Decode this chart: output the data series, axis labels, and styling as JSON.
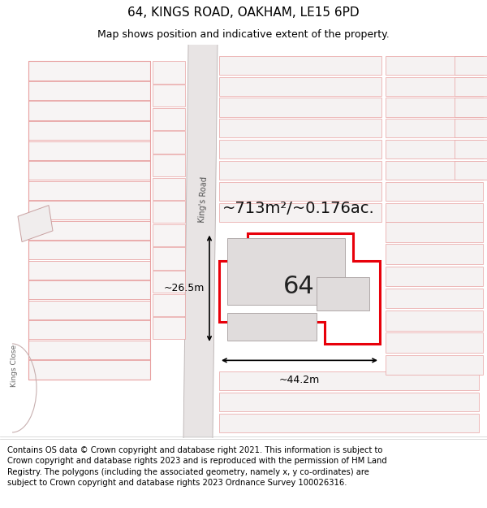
{
  "title_line1": "64, KINGS ROAD, OAKHAM, LE15 6PD",
  "title_line2": "Map shows position and indicative extent of the property.",
  "footer_text": "Contains OS data © Crown copyright and database right 2021. This information is subject to Crown copyright and database rights 2023 and is reproduced with the permission of HM Land Registry. The polygons (including the associated geometry, namely x, y co-ordinates) are subject to Crown copyright and database rights 2023 Ordnance Survey 100026316.",
  "area_label": "~713m²/~0.176ac.",
  "plot_number": "64",
  "measure_width": "~44.2m",
  "measure_height": "~26.5m",
  "bg_color": "#ffffff",
  "map_bg": "#ffffff",
  "parcel_fill": "#f5f0f0",
  "parcel_edge": "#e8a0a0",
  "plot_fill": "#ffffff",
  "plot_edge": "#e8000a",
  "road_color": "#d8d0d0",
  "road_label": "King's Road",
  "road_label2": "Kings Close",
  "title_fontsize": 11,
  "subtitle_fontsize": 9,
  "footer_fontsize": 7.2,
  "area_fontsize": 14
}
